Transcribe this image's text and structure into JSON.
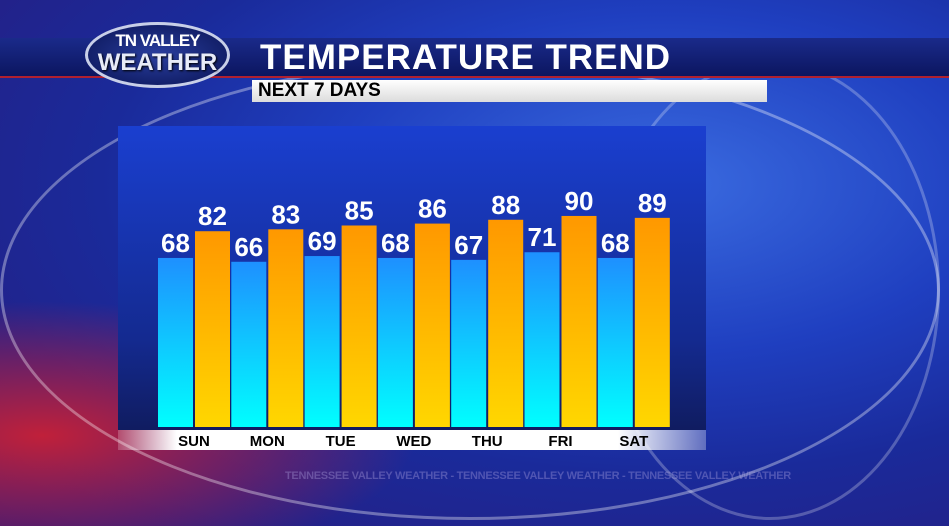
{
  "logo": {
    "line1": "TN VALLEY",
    "line2": "WEATHER"
  },
  "header": {
    "title": "TEMPERATURE TREND",
    "subtitle": "NEXT 7 DAYS"
  },
  "watermark": "TENNESSEE VALLEY WEATHER  -  TENNESSEE VALLEY WEATHER  -  TENNESSEE VALLEY WEATHER",
  "chart_data": {
    "type": "bar",
    "categories": [
      "SUN",
      "MON",
      "TUE",
      "WED",
      "THU",
      "FRI",
      "SAT"
    ],
    "series": [
      {
        "values": [
          68,
          66,
          69,
          68,
          67,
          71,
          68
        ],
        "color_top": "#1e90ff",
        "color_bottom": "#00ffff"
      },
      {
        "values": [
          82,
          83,
          85,
          86,
          88,
          90,
          89
        ],
        "color_top": "#ff9800",
        "color_bottom": "#ffd700"
      }
    ],
    "grid": false
  }
}
